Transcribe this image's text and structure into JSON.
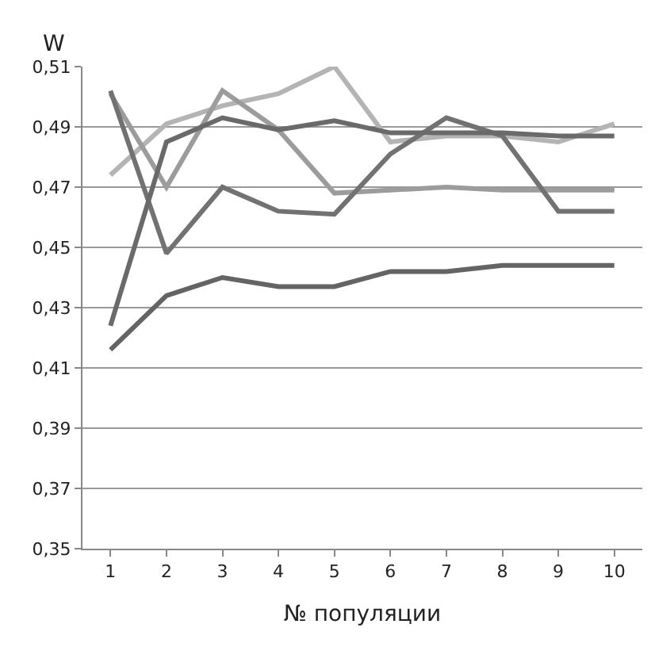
{
  "chart_data": {
    "type": "line",
    "ylabel": "W",
    "xlabel": "№ популяции",
    "categories": [
      "1",
      "2",
      "3",
      "4",
      "5",
      "6",
      "7",
      "8",
      "9",
      "10"
    ],
    "series": [
      {
        "color": "#b4b4b4",
        "values": [
          0.474,
          0.491,
          0.497,
          0.501,
          0.51,
          0.485,
          0.487,
          0.487,
          0.485,
          0.491
        ]
      },
      {
        "color": "#9c9c9c",
        "values": [
          0.501,
          0.47,
          0.502,
          0.489,
          0.468,
          0.469,
          0.47,
          0.469,
          0.469,
          0.469
        ]
      },
      {
        "color": "#727272",
        "values": [
          0.502,
          0.448,
          0.47,
          0.462,
          0.461,
          0.481,
          0.493,
          0.487,
          0.462,
          0.462
        ]
      },
      {
        "color": "#6a6a6a",
        "values": [
          0.424,
          0.485,
          0.493,
          0.489,
          0.492,
          0.488,
          0.488,
          0.488,
          0.487,
          0.487
        ]
      },
      {
        "color": "#646464",
        "values": [
          0.416,
          0.434,
          0.44,
          0.437,
          0.437,
          0.442,
          0.442,
          0.444,
          0.444,
          0.444
        ]
      }
    ],
    "ylim": [
      0.35,
      0.51
    ],
    "yticks": [
      {
        "value": 0.35,
        "label": "0,35"
      },
      {
        "value": 0.37,
        "label": "0,37"
      },
      {
        "value": 0.39,
        "label": "0,39"
      },
      {
        "value": 0.41,
        "label": "0,41"
      },
      {
        "value": 0.43,
        "label": "0,43"
      },
      {
        "value": 0.45,
        "label": "0,45"
      },
      {
        "value": 0.47,
        "label": "0,47"
      },
      {
        "value": 0.49,
        "label": "0,49"
      },
      {
        "value": 0.51,
        "label": "0,51"
      }
    ],
    "grid": "y",
    "marker": "none",
    "line_style": "solid"
  }
}
